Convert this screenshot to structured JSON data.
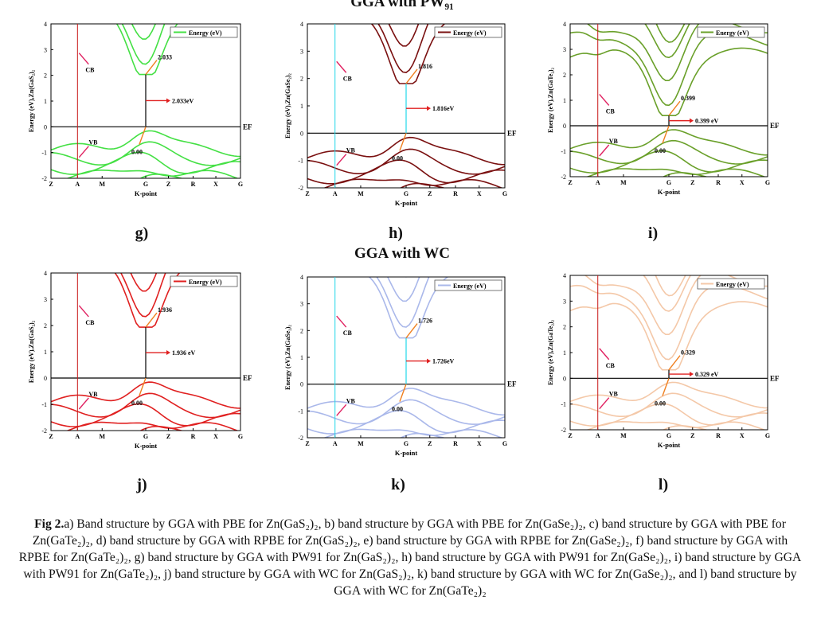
{
  "section_titles": {
    "top": "GGA with PW₉₁",
    "bottom": "GGA with WC"
  },
  "caption": {
    "lead": "Fig 2.",
    "text": "a) Band structure by GGA with PBE for Zn(GaS₂)₂, b) band structure by GGA with PBE for Zn(GaSe₂)₂, c) band structure by GGA with PBE for Zn(GaTe₂)₂, d) band structure by GGA with RPBE for Zn(GaS₂)₂, e) band structure by GGA with RPBE for Zn(GaSe₂)₂, f) band structure by GGA with RPBE for Zn(GaTe₂)₂, g) band structure by GGA with PW91 for Zn(GaS₂)₂, h) band structure by GGA with PW91 for Zn(GaSe₂)₂, i) band structure by GGA with PW91 for Zn(GaTe₂)₂, j) band structure by GGA with WC for Zn(GaS₂)₂, k) band structure by GGA with WC for Zn(GaSe₂)₂, and l) band structure by GGA with WC for Zn(GaTe₂)₂"
  },
  "chart_data": [
    {
      "id": "g",
      "label": "g)",
      "type": "line",
      "title": "",
      "color": "#44e044",
      "ylabel": "Energy (eV),Zn(GaS₂)₂",
      "xlabel": "K-point",
      "ylim": [
        -2,
        4
      ],
      "yticks": [
        "-2",
        "-1",
        "0",
        "1",
        "2",
        "3",
        "4"
      ],
      "xticks": [
        "Z",
        "A",
        "M",
        "G",
        "Z",
        "R",
        "X",
        "G"
      ],
      "legend": "Energy (eV)",
      "fermi_label": "EF",
      "gap_label": "2.033eV",
      "cbm_label": "2.033",
      "vbm_label": "0.00",
      "cb_text": "CB",
      "vb_text": "VB",
      "band_gap_ev": 2.033
    },
    {
      "id": "h",
      "label": "h)",
      "type": "line",
      "title": "",
      "color": "#7a1010",
      "ylabel": "Energy (eV),Zn(GaSe₂)₂",
      "xlabel": "K-point",
      "ylim": [
        -2,
        4
      ],
      "yticks": [
        "-2",
        "-1",
        "0",
        "1",
        "2",
        "3",
        "4"
      ],
      "xticks": [
        "Z",
        "A",
        "M",
        "G",
        "Z",
        "R",
        "X",
        "G"
      ],
      "legend": "Energy (eV)",
      "fermi_label": "EF",
      "gap_label": "1.816eV",
      "cbm_label": "1.816",
      "vbm_label": "0.00",
      "cb_text": "CB",
      "vb_text": "VB",
      "band_gap_ev": 1.816
    },
    {
      "id": "i",
      "label": "i)",
      "type": "line",
      "title": "",
      "color": "#6aa02a",
      "ylabel": "Energy (eV),Zn(GaTe₂)₂",
      "xlabel": "K-point",
      "ylim": [
        -2,
        4
      ],
      "yticks": [
        "-2",
        "-1",
        "0",
        "1",
        "2",
        "3",
        "4"
      ],
      "xticks": [
        "Z",
        "A",
        "M",
        "G",
        "Z",
        "R",
        "X",
        "G"
      ],
      "legend": "Energy (eV)",
      "fermi_label": "EF",
      "gap_label": "0.399 eV",
      "cbm_label": "0.399",
      "vbm_label": "0.00",
      "cb_text": "CB",
      "vb_text": "VB",
      "band_gap_ev": 0.399
    },
    {
      "id": "j",
      "label": "j)",
      "type": "line",
      "title": "",
      "color": "#e02020",
      "ylabel": "Energy (eV),Zn(GaS₂)₂",
      "xlabel": "K-point",
      "ylim": [
        -2,
        4
      ],
      "yticks": [
        "-2",
        "-1",
        "0",
        "1",
        "2",
        "3",
        "4"
      ],
      "xticks": [
        "Z",
        "A",
        "M",
        "G",
        "Z",
        "R",
        "X",
        "G"
      ],
      "legend": "Energy (eV)",
      "fermi_label": "EF",
      "gap_label": "1.936 eV",
      "cbm_label": "1.936",
      "vbm_label": "0.00",
      "cb_text": "CB",
      "vb_text": "VB",
      "band_gap_ev": 1.936
    },
    {
      "id": "k",
      "label": "k)",
      "type": "line",
      "title": "",
      "color": "#aab8ea",
      "ylabel": "Energy (eV),Zn(GaSe₂)₂",
      "xlabel": "K-point",
      "ylim": [
        -2,
        4
      ],
      "yticks": [
        "-2",
        "-1",
        "0",
        "1",
        "2",
        "3",
        "4"
      ],
      "xticks": [
        "Z",
        "A",
        "M",
        "G",
        "Z",
        "R",
        "X",
        "G"
      ],
      "legend": "Energy (eV)",
      "fermi_label": "EF",
      "gap_label": "1.726eV",
      "cbm_label": "1.726",
      "vbm_label": "0.00",
      "cb_text": "CB",
      "vb_text": "VB",
      "band_gap_ev": 1.726
    },
    {
      "id": "l",
      "label": "l)",
      "type": "line",
      "title": "",
      "color": "#f4c8a8",
      "ylabel": "Energy (eV),Zn(GaTe₂)₂",
      "xlabel": "K-point",
      "ylim": [
        -2,
        4
      ],
      "yticks": [
        "-2",
        "-1",
        "0",
        "1",
        "2",
        "3",
        "4"
      ],
      "xticks": [
        "Z",
        "A",
        "M",
        "G",
        "Z",
        "R",
        "X",
        "G"
      ],
      "legend": "Energy (eV)",
      "fermi_label": "EF",
      "gap_label": "0.329 eV",
      "cbm_label": "0.329",
      "vbm_label": "0.00",
      "cb_text": "CB",
      "vb_text": "VB",
      "band_gap_ev": 0.329
    }
  ]
}
